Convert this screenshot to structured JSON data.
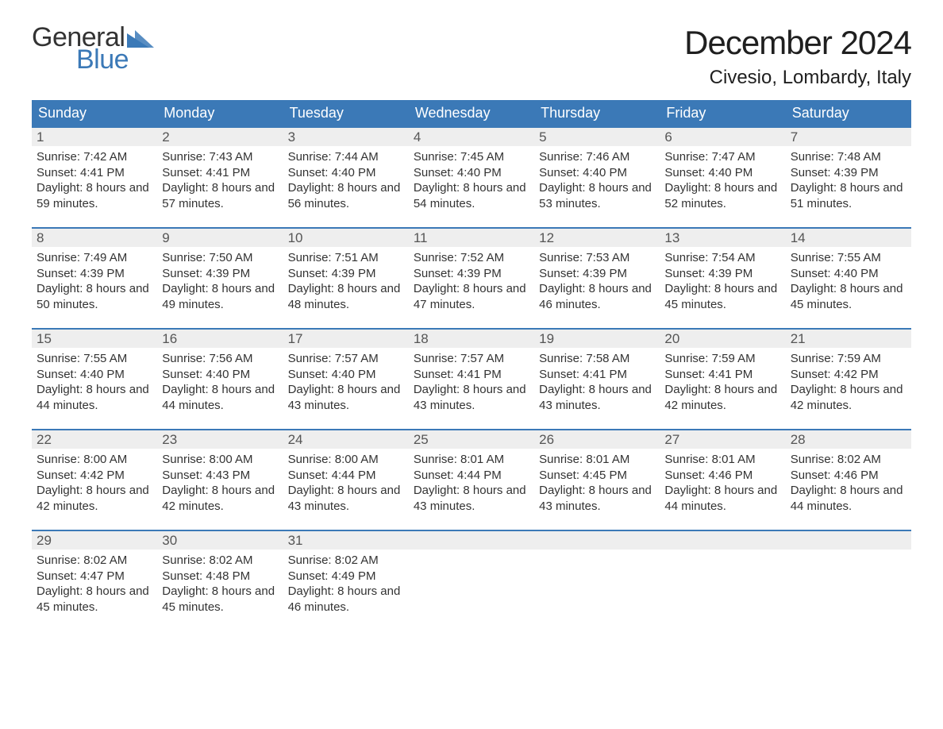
{
  "logo": {
    "word1": "General",
    "word2": "Blue",
    "triangle_color": "#3b79b7",
    "word1_color": "#333333",
    "word2_color": "#3b79b7"
  },
  "title": {
    "month": "December 2024",
    "location": "Civesio, Lombardy, Italy"
  },
  "colors": {
    "header_bg": "#3b79b7",
    "header_text": "#ffffff",
    "daynum_bg": "#eeeeee",
    "week_border": "#3b79b7",
    "body_text": "#333333",
    "background": "#ffffff"
  },
  "weekdays": [
    "Sunday",
    "Monday",
    "Tuesday",
    "Wednesday",
    "Thursday",
    "Friday",
    "Saturday"
  ],
  "labels": {
    "sunrise": "Sunrise:",
    "sunset": "Sunset:",
    "daylight": "Daylight:"
  },
  "weeks": [
    [
      {
        "n": "1",
        "sunrise": "7:42 AM",
        "sunset": "4:41 PM",
        "daylight": "8 hours and 59 minutes."
      },
      {
        "n": "2",
        "sunrise": "7:43 AM",
        "sunset": "4:41 PM",
        "daylight": "8 hours and 57 minutes."
      },
      {
        "n": "3",
        "sunrise": "7:44 AM",
        "sunset": "4:40 PM",
        "daylight": "8 hours and 56 minutes."
      },
      {
        "n": "4",
        "sunrise": "7:45 AM",
        "sunset": "4:40 PM",
        "daylight": "8 hours and 54 minutes."
      },
      {
        "n": "5",
        "sunrise": "7:46 AM",
        "sunset": "4:40 PM",
        "daylight": "8 hours and 53 minutes."
      },
      {
        "n": "6",
        "sunrise": "7:47 AM",
        "sunset": "4:40 PM",
        "daylight": "8 hours and 52 minutes."
      },
      {
        "n": "7",
        "sunrise": "7:48 AM",
        "sunset": "4:39 PM",
        "daylight": "8 hours and 51 minutes."
      }
    ],
    [
      {
        "n": "8",
        "sunrise": "7:49 AM",
        "sunset": "4:39 PM",
        "daylight": "8 hours and 50 minutes."
      },
      {
        "n": "9",
        "sunrise": "7:50 AM",
        "sunset": "4:39 PM",
        "daylight": "8 hours and 49 minutes."
      },
      {
        "n": "10",
        "sunrise": "7:51 AM",
        "sunset": "4:39 PM",
        "daylight": "8 hours and 48 minutes."
      },
      {
        "n": "11",
        "sunrise": "7:52 AM",
        "sunset": "4:39 PM",
        "daylight": "8 hours and 47 minutes."
      },
      {
        "n": "12",
        "sunrise": "7:53 AM",
        "sunset": "4:39 PM",
        "daylight": "8 hours and 46 minutes."
      },
      {
        "n": "13",
        "sunrise": "7:54 AM",
        "sunset": "4:39 PM",
        "daylight": "8 hours and 45 minutes."
      },
      {
        "n": "14",
        "sunrise": "7:55 AM",
        "sunset": "4:40 PM",
        "daylight": "8 hours and 45 minutes."
      }
    ],
    [
      {
        "n": "15",
        "sunrise": "7:55 AM",
        "sunset": "4:40 PM",
        "daylight": "8 hours and 44 minutes."
      },
      {
        "n": "16",
        "sunrise": "7:56 AM",
        "sunset": "4:40 PM",
        "daylight": "8 hours and 44 minutes."
      },
      {
        "n": "17",
        "sunrise": "7:57 AM",
        "sunset": "4:40 PM",
        "daylight": "8 hours and 43 minutes."
      },
      {
        "n": "18",
        "sunrise": "7:57 AM",
        "sunset": "4:41 PM",
        "daylight": "8 hours and 43 minutes."
      },
      {
        "n": "19",
        "sunrise": "7:58 AM",
        "sunset": "4:41 PM",
        "daylight": "8 hours and 43 minutes."
      },
      {
        "n": "20",
        "sunrise": "7:59 AM",
        "sunset": "4:41 PM",
        "daylight": "8 hours and 42 minutes."
      },
      {
        "n": "21",
        "sunrise": "7:59 AM",
        "sunset": "4:42 PM",
        "daylight": "8 hours and 42 minutes."
      }
    ],
    [
      {
        "n": "22",
        "sunrise": "8:00 AM",
        "sunset": "4:42 PM",
        "daylight": "8 hours and 42 minutes."
      },
      {
        "n": "23",
        "sunrise": "8:00 AM",
        "sunset": "4:43 PM",
        "daylight": "8 hours and 42 minutes."
      },
      {
        "n": "24",
        "sunrise": "8:00 AM",
        "sunset": "4:44 PM",
        "daylight": "8 hours and 43 minutes."
      },
      {
        "n": "25",
        "sunrise": "8:01 AM",
        "sunset": "4:44 PM",
        "daylight": "8 hours and 43 minutes."
      },
      {
        "n": "26",
        "sunrise": "8:01 AM",
        "sunset": "4:45 PM",
        "daylight": "8 hours and 43 minutes."
      },
      {
        "n": "27",
        "sunrise": "8:01 AM",
        "sunset": "4:46 PM",
        "daylight": "8 hours and 44 minutes."
      },
      {
        "n": "28",
        "sunrise": "8:02 AM",
        "sunset": "4:46 PM",
        "daylight": "8 hours and 44 minutes."
      }
    ],
    [
      {
        "n": "29",
        "sunrise": "8:02 AM",
        "sunset": "4:47 PM",
        "daylight": "8 hours and 45 minutes."
      },
      {
        "n": "30",
        "sunrise": "8:02 AM",
        "sunset": "4:48 PM",
        "daylight": "8 hours and 45 minutes."
      },
      {
        "n": "31",
        "sunrise": "8:02 AM",
        "sunset": "4:49 PM",
        "daylight": "8 hours and 46 minutes."
      },
      {
        "empty": true
      },
      {
        "empty": true
      },
      {
        "empty": true
      },
      {
        "empty": true
      }
    ]
  ]
}
